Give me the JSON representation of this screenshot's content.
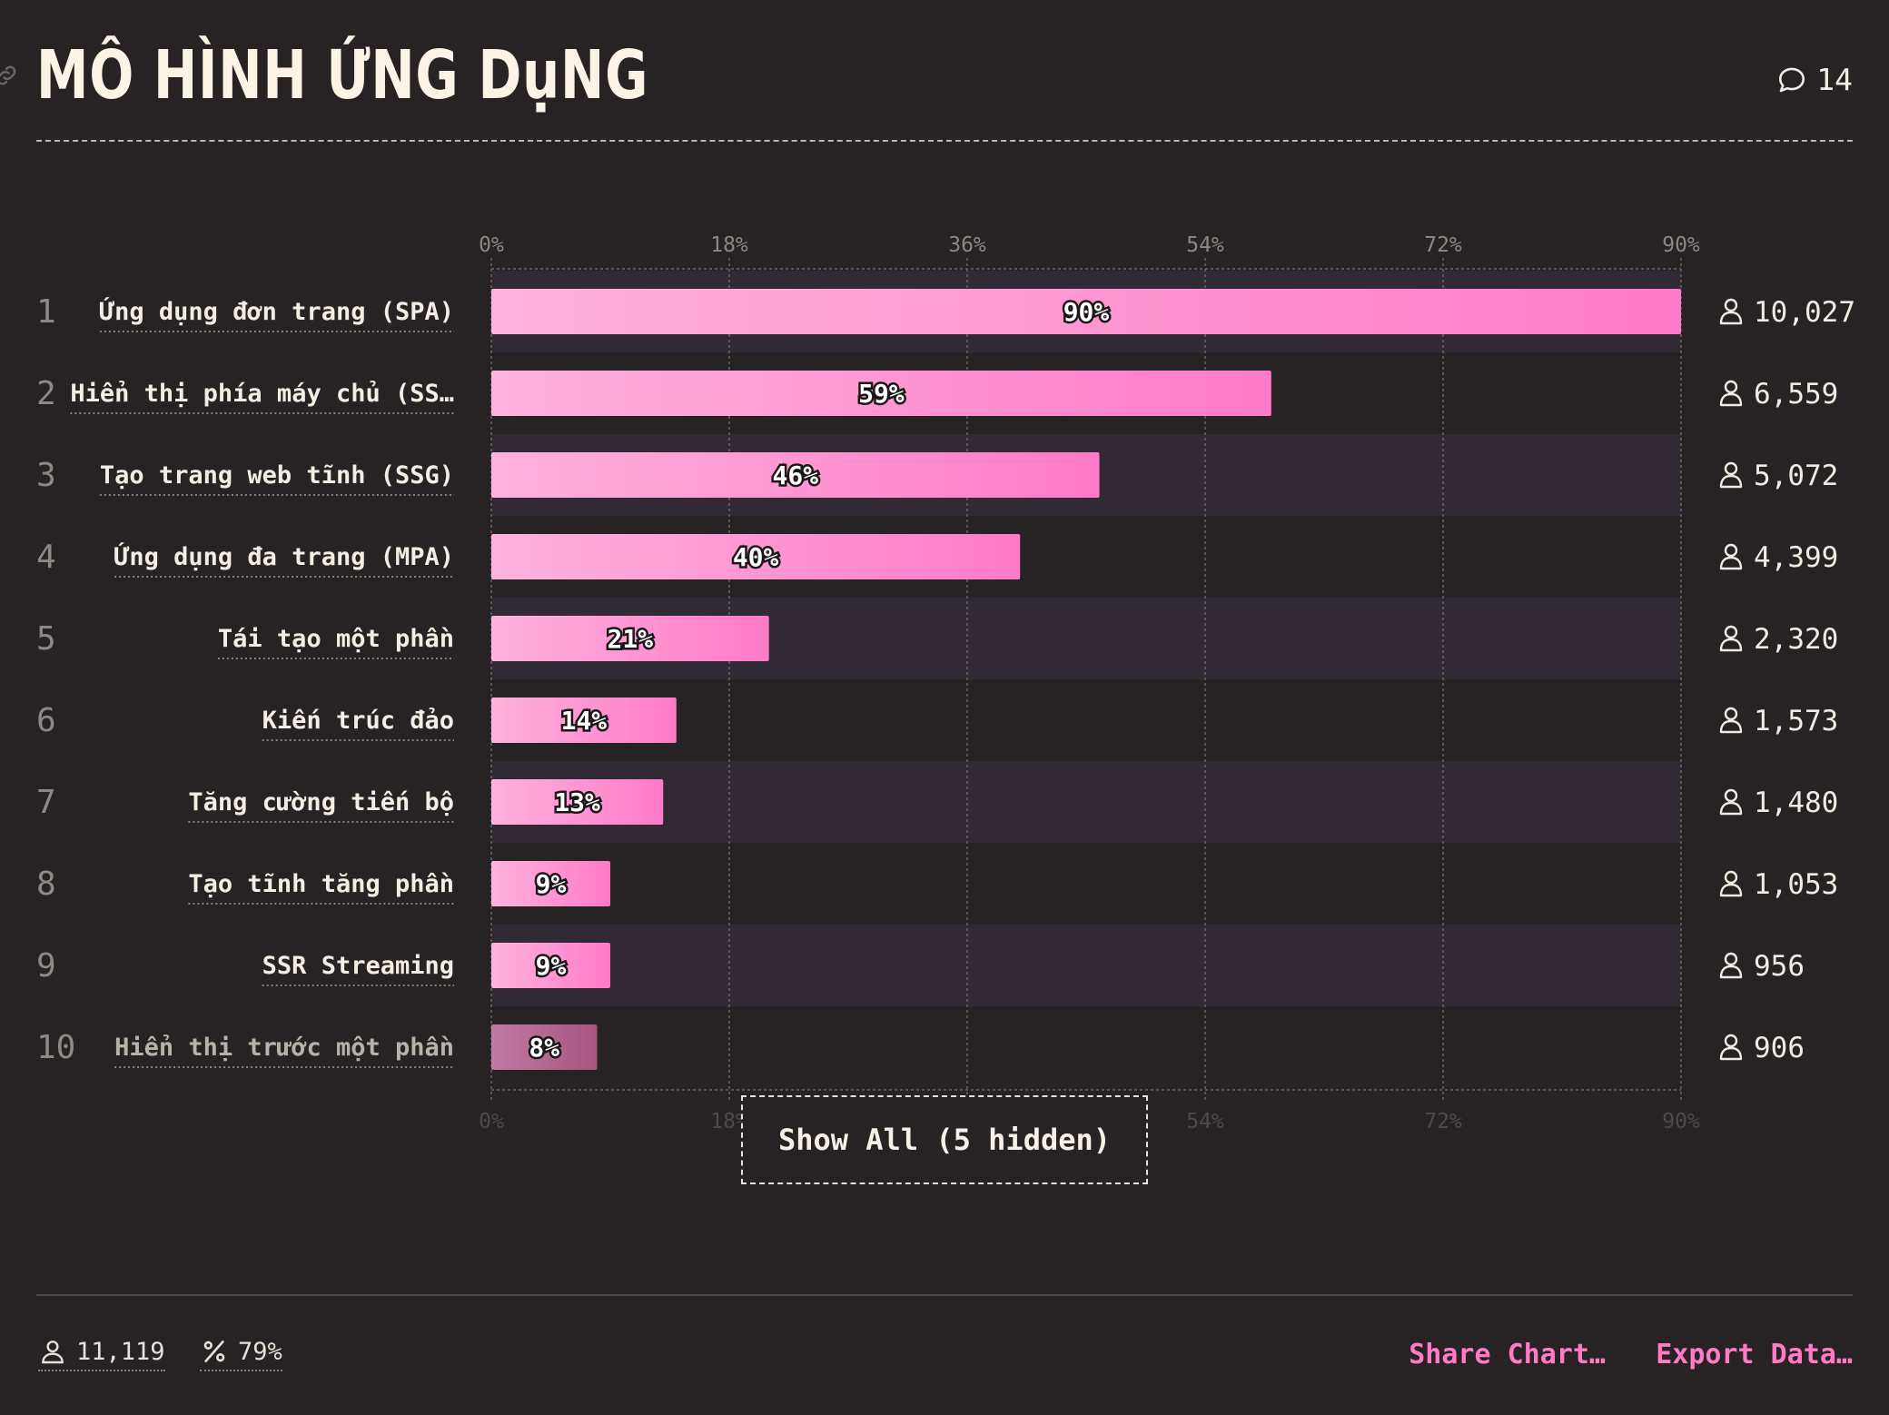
{
  "header": {
    "title": "MÔ HÌNH ỨNG DụNG",
    "comment_count": "14"
  },
  "colors": {
    "background": "#272325",
    "bar_start": "#ffb3dd",
    "bar_end": "#ff7ac8",
    "bar_muted_start": "#c07aa2",
    "bar_muted_end": "#a8557f",
    "stripe": "#312a35",
    "accent": "#ff7bc4"
  },
  "chart_data": {
    "type": "bar",
    "orientation": "horizontal",
    "x_ticks": [
      "0%",
      "18%",
      "36%",
      "54%",
      "72%",
      "90%"
    ],
    "xlim": [
      0,
      90
    ],
    "grid": true,
    "categories": [
      "Ứng dụng đơn trang (SPA)",
      "Hiển thị phía máy chủ (SS…",
      "Tạo trang web tĩnh (SSG)",
      "Ứng dụng đa trang (MPA)",
      "Tái tạo một phần",
      "Kiến trúc đảo",
      "Tăng cường tiến bộ",
      "Tạo tĩnh tăng phần",
      "SSR Streaming",
      "Hiển thị trước một phần"
    ],
    "ranks": [
      "1",
      "2",
      "3",
      "4",
      "5",
      "6",
      "7",
      "8",
      "9",
      "10"
    ],
    "values": [
      90,
      59,
      46,
      40,
      21,
      14,
      13,
      9,
      9,
      8
    ],
    "value_labels": [
      "90%",
      "59%",
      "46%",
      "40%",
      "21%",
      "14%",
      "13%",
      "9%",
      "9%",
      "8%"
    ],
    "counts": [
      "10,027",
      "6,559",
      "5,072",
      "4,399",
      "2,320",
      "1,573",
      "1,480",
      "1,053",
      "956",
      "906"
    ],
    "muted_rank": 10
  },
  "show_all": {
    "label": "Show All (5 hidden)"
  },
  "footer": {
    "total_users": "11,119",
    "percent": "79%",
    "share_label": "Share Chart…",
    "export_label": "Export Data…"
  }
}
